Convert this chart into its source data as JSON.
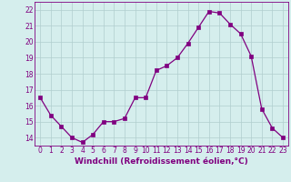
{
  "x": [
    0,
    1,
    2,
    3,
    4,
    5,
    6,
    7,
    8,
    9,
    10,
    11,
    12,
    13,
    14,
    15,
    16,
    17,
    18,
    19,
    20,
    21,
    22,
    23
  ],
  "y": [
    16.5,
    15.4,
    14.7,
    14.0,
    13.7,
    14.2,
    15.0,
    15.0,
    15.2,
    16.5,
    16.5,
    18.2,
    18.5,
    19.0,
    19.9,
    20.9,
    21.9,
    21.8,
    21.1,
    20.5,
    19.1,
    15.8,
    14.6,
    14.0
  ],
  "line_color": "#800080",
  "marker": "s",
  "marker_size": 2.5,
  "background_color": "#d5eeed",
  "grid_color": "#b0cece",
  "xlabel": "Windchill (Refroidissement éolien,°C)",
  "ylim": [
    13.5,
    22.5
  ],
  "xlim": [
    -0.5,
    23.5
  ],
  "yticks": [
    14,
    15,
    16,
    17,
    18,
    19,
    20,
    21,
    22
  ],
  "xticks": [
    0,
    1,
    2,
    3,
    4,
    5,
    6,
    7,
    8,
    9,
    10,
    11,
    12,
    13,
    14,
    15,
    16,
    17,
    18,
    19,
    20,
    21,
    22,
    23
  ],
  "tick_color": "#800080",
  "tick_fontsize": 5.5,
  "xlabel_fontsize": 6.5
}
